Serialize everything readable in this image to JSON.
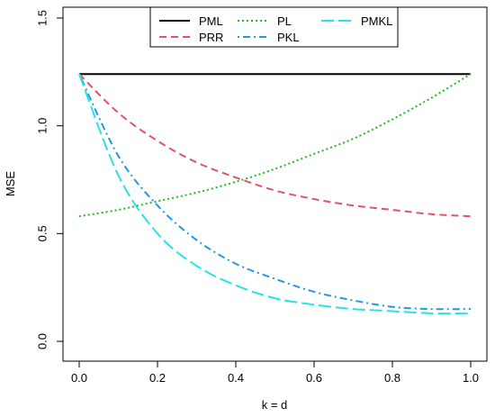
{
  "chart_data": {
    "type": "line",
    "title": "",
    "xlabel": "k = d",
    "ylabel": "MSE",
    "xlim": [
      0.0,
      1.0
    ],
    "ylim": [
      0.0,
      1.5
    ],
    "xticks": [
      "0.0",
      "0.2",
      "0.4",
      "0.6",
      "0.8",
      "1.0"
    ],
    "yticks": [
      "0.0",
      "0.5",
      "1.0",
      "1.5"
    ],
    "grid": false,
    "legend_position": "top-center",
    "x": [
      0.0,
      0.1,
      0.2,
      0.3,
      0.4,
      0.5,
      0.6,
      0.7,
      0.8,
      0.9,
      1.0
    ],
    "series": [
      {
        "name": "PML",
        "color": "#000000",
        "dash": "solid",
        "values": [
          1.24,
          1.24,
          1.24,
          1.24,
          1.24,
          1.24,
          1.24,
          1.24,
          1.24,
          1.24,
          1.24
        ]
      },
      {
        "name": "PRR",
        "color": "#df536b",
        "dash": "dashed",
        "values": [
          1.24,
          1.06,
          0.93,
          0.83,
          0.76,
          0.7,
          0.66,
          0.63,
          0.61,
          0.59,
          0.58
        ]
      },
      {
        "name": "PL",
        "color": "#22b822",
        "dash": "dotted",
        "values": [
          0.58,
          0.61,
          0.65,
          0.69,
          0.74,
          0.8,
          0.87,
          0.94,
          1.03,
          1.13,
          1.24
        ]
      },
      {
        "name": "PKL",
        "color": "#2297e6",
        "dash": "dotdash",
        "values": [
          1.24,
          0.86,
          0.63,
          0.47,
          0.36,
          0.29,
          0.23,
          0.19,
          0.16,
          0.15,
          0.15
        ]
      },
      {
        "name": "PMKL",
        "color": "#28e2e5",
        "dash": "longdash",
        "values": [
          1.24,
          0.77,
          0.5,
          0.35,
          0.26,
          0.2,
          0.17,
          0.15,
          0.14,
          0.13,
          0.13
        ]
      }
    ]
  }
}
